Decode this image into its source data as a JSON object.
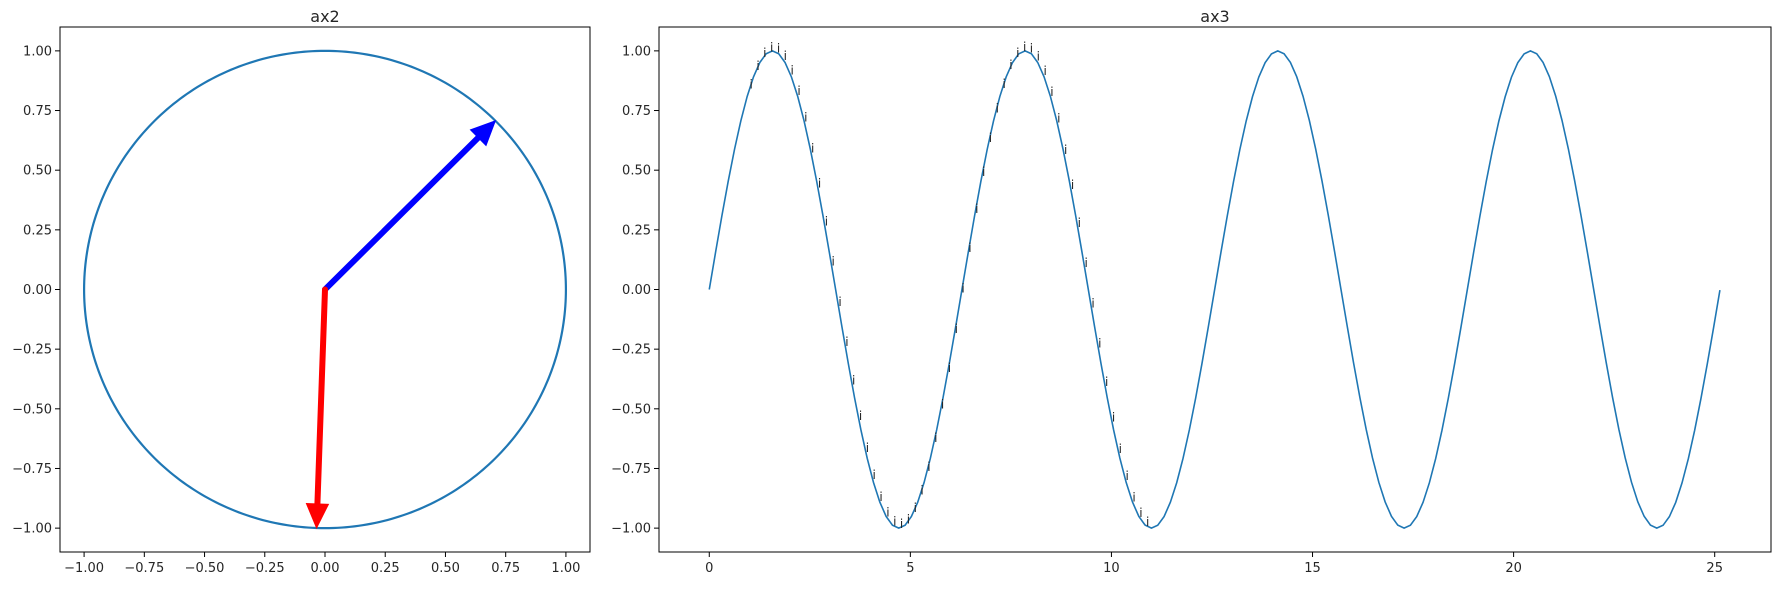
{
  "chart_data": [
    {
      "type": "line",
      "title": "ax2",
      "xlabel": "",
      "ylabel": "",
      "xlim": [
        -1.1,
        1.1
      ],
      "ylim": [
        -1.1,
        1.1
      ],
      "xticks": [
        -1.0,
        -0.75,
        -0.5,
        -0.25,
        0.0,
        0.25,
        0.5,
        0.75,
        1.0
      ],
      "xtick_labels": [
        "−1.00",
        "−0.75",
        "−0.50",
        "−0.25",
        "0.00",
        "0.25",
        "0.50",
        "0.75",
        "1.00"
      ],
      "yticks": [
        1.0,
        0.75,
        0.5,
        0.25,
        0.0,
        -0.25,
        -0.5,
        -0.75,
        -1.0
      ],
      "ytick_labels": [
        "1.00",
        "0.75",
        "0.50",
        "0.25",
        "0.00",
        "−0.25",
        "−0.50",
        "−0.75",
        "−1.00"
      ],
      "grid": false,
      "series": [
        {
          "shape": "circle",
          "center": [
            0,
            0
          ],
          "radius": 1.0,
          "color": "#1f77b4"
        }
      ],
      "arrows": [
        {
          "from": [
            0,
            0
          ],
          "to": [
            0.707,
            0.707
          ],
          "color": "#0000ff"
        },
        {
          "from": [
            0,
            0
          ],
          "to": [
            -0.035,
            -0.999
          ],
          "color": "#ff0000"
        }
      ]
    },
    {
      "type": "line",
      "title": "ax3",
      "xlabel": "",
      "ylabel": "",
      "xlim": [
        -1.25,
        26.4
      ],
      "ylim": [
        -1.1,
        1.1
      ],
      "xticks": [
        0,
        5,
        10,
        15,
        20,
        25
      ],
      "xtick_labels": [
        "0",
        "5",
        "10",
        "15",
        "20",
        "25"
      ],
      "yticks": [
        1.0,
        0.75,
        0.5,
        0.25,
        0.0,
        -0.25,
        -0.5,
        -0.75,
        -1.0
      ],
      "ytick_labels": [
        "1.00",
        "0.75",
        "0.50",
        "0.25",
        "0.00",
        "−0.25",
        "−0.50",
        "−0.75",
        "−1.00"
      ],
      "grid": false,
      "series": [
        {
          "function": "y = sin(x)",
          "x_start": 0,
          "x_end": 25.13,
          "color": "#1f77b4"
        }
      ],
      "annotations": {
        "text": "i",
        "x_start": 1.0,
        "x_end": 10.9,
        "step": 0.17
      }
    }
  ]
}
